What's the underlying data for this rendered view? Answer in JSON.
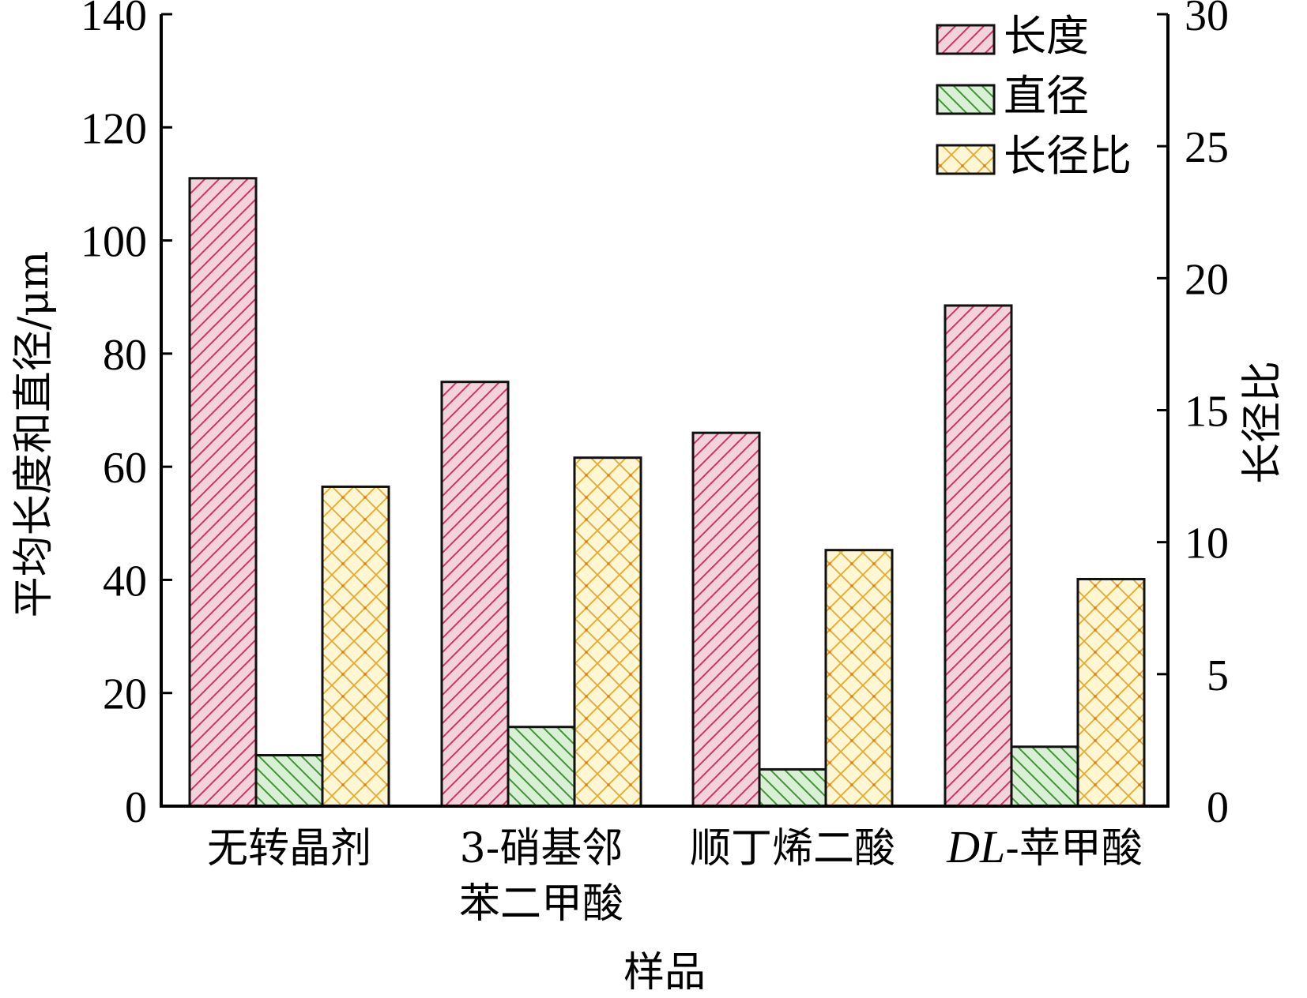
{
  "chart_data": {
    "type": "bar",
    "categories": [
      {
        "lines": [
          "无转晶剂"
        ]
      },
      {
        "lines": [
          "3-硝基邻",
          "苯二甲酸"
        ]
      },
      {
        "lines": [
          "顺丁烯二酸"
        ]
      },
      {
        "parts": [
          {
            "text": "DL",
            "italic": true
          },
          {
            "text": "-苹甲酸",
            "italic": false
          }
        ]
      }
    ],
    "xlabel": "样品",
    "ylabel_left": "平均长度和直径/μm",
    "ylabel_right": "长径比",
    "ylim_left": [
      0,
      140
    ],
    "ylim_right": [
      0,
      30
    ],
    "yticks_left": [
      0,
      20,
      40,
      60,
      80,
      100,
      120,
      140
    ],
    "yticks_right": [
      0,
      5,
      10,
      15,
      20,
      25,
      30
    ],
    "legend_position": "top-right",
    "series": [
      {
        "name": "长度",
        "axis": "left",
        "values": [
          111,
          75,
          66,
          88.5
        ],
        "fill": "#f2d3dc",
        "hatch": "#c8386a",
        "pattern": "diag-up"
      },
      {
        "name": "直径",
        "axis": "left",
        "values": [
          9,
          14,
          6.5,
          10.5
        ],
        "fill": "#d9efd6",
        "hatch": "#3a9a2c",
        "pattern": "diag-down"
      },
      {
        "name": "长径比",
        "axis": "right",
        "values": [
          12.1,
          13.2,
          9.7,
          8.6
        ],
        "fill": "#fff6d4",
        "hatch": "#e8a92c",
        "pattern": "cross"
      }
    ]
  }
}
